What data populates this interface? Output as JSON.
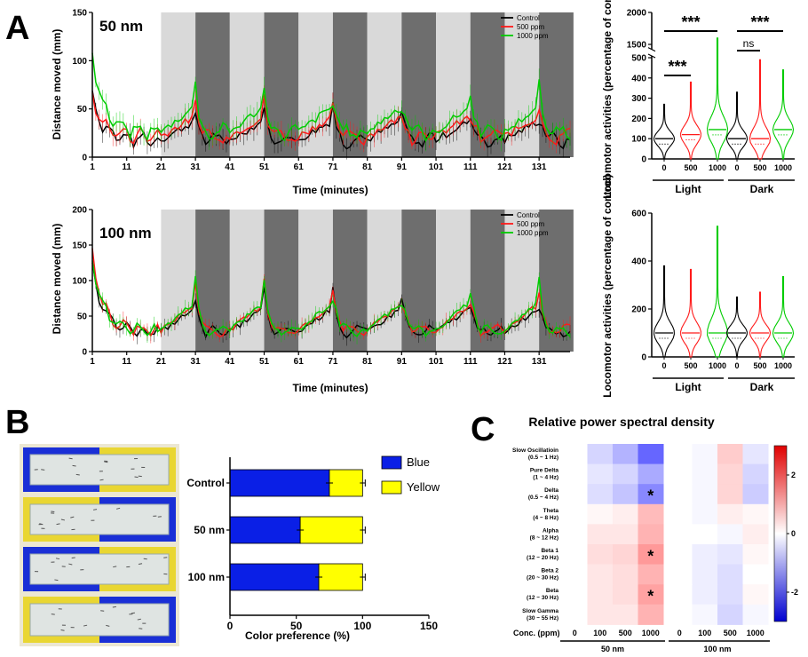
{
  "panels": {
    "A": "A",
    "B": "B",
    "C": "C"
  },
  "colors": {
    "control": "#000000",
    "p500": "#ff1a1a",
    "p1000": "#00cc00",
    "light_band": "#d9d9d9",
    "dark_band": "#6e6e6e",
    "blue": "#0a1fe6",
    "yellow": "#ffff00"
  },
  "chart_data": [
    {
      "id": "a_50nm_timecourse",
      "type": "line",
      "title": "50 nm",
      "xlabel": "Time (minutes)",
      "ylabel": "Distance moved (mm)",
      "ylim": [
        0,
        150
      ],
      "yticks": [
        "0",
        "50",
        "100",
        "150"
      ],
      "xticks": [
        "1",
        "11",
        "21",
        "31",
        "41",
        "51",
        "61",
        "71",
        "81",
        "91",
        "101",
        "111",
        "121",
        "131"
      ],
      "legend": [
        "Control",
        "500 ppm",
        "1000 ppm"
      ],
      "light_dark_periods": [
        {
          "start": 21,
          "end": 30,
          "type": "light"
        },
        {
          "start": 31,
          "end": 40,
          "type": "dark"
        },
        {
          "start": 41,
          "end": 50,
          "type": "light"
        },
        {
          "start": 51,
          "end": 60,
          "type": "dark"
        },
        {
          "start": 61,
          "end": 70,
          "type": "light"
        },
        {
          "start": 71,
          "end": 80,
          "type": "dark"
        },
        {
          "start": 81,
          "end": 90,
          "type": "light"
        },
        {
          "start": 91,
          "end": 100,
          "type": "dark"
        },
        {
          "start": 101,
          "end": 110,
          "type": "light"
        },
        {
          "start": 111,
          "end": 120,
          "type": "dark"
        },
        {
          "start": 121,
          "end": 130,
          "type": "light"
        },
        {
          "start": 131,
          "end": 140,
          "type": "dark"
        }
      ],
      "series": [
        {
          "name": "Control",
          "baseline": 18,
          "peak": 58,
          "early": 45
        },
        {
          "name": "500 ppm",
          "baseline": 22,
          "peak": 62,
          "early": 40
        },
        {
          "name": "1000 ppm",
          "baseline": 26,
          "peak": 80,
          "early": 85
        }
      ]
    },
    {
      "id": "a_100nm_timecourse",
      "type": "line",
      "title": "100 nm",
      "xlabel": "Time (minutes)",
      "ylabel": "Distance moved (mm)",
      "ylim": [
        0,
        200
      ],
      "yticks": [
        "0",
        "50",
        "100",
        "150",
        "200"
      ],
      "xticks": [
        "1",
        "11",
        "21",
        "31",
        "41",
        "51",
        "61",
        "71",
        "81",
        "91",
        "101",
        "111",
        "121",
        "131"
      ],
      "legend": [
        "Control",
        "500 ppm",
        "1000 ppm"
      ],
      "series": [
        {
          "name": "Control",
          "baseline": 28,
          "peak": 95,
          "early": 95
        },
        {
          "name": "500 ppm",
          "baseline": 30,
          "peak": 105,
          "early": 110
        },
        {
          "name": "1000 ppm",
          "baseline": 30,
          "peak": 110,
          "early": 100
        }
      ]
    },
    {
      "id": "a_50nm_violin",
      "type": "violin",
      "ylabel": "Locomotor activities (percentage of control)",
      "yticks_lower": [
        "0",
        "100",
        "200",
        "300",
        "400",
        "500"
      ],
      "yticks_upper": [
        "1500",
        "2000"
      ],
      "categories": [
        "0",
        "500",
        "1000",
        "0",
        "500",
        "1000"
      ],
      "groups": [
        "Light",
        "Dark"
      ],
      "medians": [
        100,
        120,
        145,
        100,
        100,
        145
      ],
      "maxima": [
        270,
        380,
        1600,
        330,
        490,
        440
      ],
      "significance": [
        {
          "pair": "0 vs 500 (Light)",
          "label": "***"
        },
        {
          "pair": "0 vs 1000 (Light)",
          "label": "***"
        },
        {
          "pair": "0 vs 500 (Dark)",
          "label": "ns"
        },
        {
          "pair": "0 vs 1000 (Dark)",
          "label": "***"
        }
      ]
    },
    {
      "id": "a_100nm_violin",
      "type": "violin",
      "ylabel": "Locomotor activities (percentage of control)",
      "yticks": [
        "0",
        "200",
        "400",
        "600"
      ],
      "categories": [
        "0",
        "500",
        "1000",
        "0",
        "500",
        "1000"
      ],
      "groups": [
        "Light",
        "Dark"
      ],
      "medians": [
        100,
        100,
        100,
        100,
        100,
        100
      ],
      "maxima": [
        380,
        365,
        545,
        250,
        270,
        335
      ]
    },
    {
      "id": "b_color_preference",
      "type": "bar",
      "orientation": "horizontal-stacked",
      "xlabel": "Color preference (%)",
      "xlim": [
        0,
        150
      ],
      "xticks": [
        "0",
        "50",
        "100",
        "150"
      ],
      "categories": [
        "Control",
        "50 nm",
        "100 nm"
      ],
      "series": [
        {
          "name": "Blue",
          "values": [
            75,
            53,
            67
          ]
        },
        {
          "name": "Yellow",
          "values": [
            25,
            47,
            33
          ]
        }
      ]
    },
    {
      "id": "c_relative_psd",
      "type": "heatmap",
      "title": "Relative power spectral density",
      "xlabel": "Conc. (ppm)",
      "columns": [
        "0",
        "100",
        "500",
        "1000",
        "0",
        "100",
        "500",
        "1000"
      ],
      "groups": [
        "50 nm",
        "100 nm"
      ],
      "rows": [
        "Slow Oscillatioin (0.5 ~ 1 Hz)",
        "Pure Delta (1 ~ 4 Hz)",
        "Delta (0.5 ~ 4 Hz)",
        "Theta (4 ~ 8 Hz)",
        "Alpha (8 ~ 12 Hz)",
        "Beta 1 (12 ~ 20 Hz)",
        "Beta 2 (20 ~ 30 Hz)",
        "Beta (12 ~ 30 Hz)",
        "Slow Gamma (30 ~ 55 Hz)"
      ],
      "colorbar_ticks": [
        "2",
        "0",
        "-2"
      ],
      "clim": [
        -3,
        3
      ],
      "values": [
        [
          0,
          -0.5,
          -0.9,
          -1.8,
          0,
          -0.1,
          0.6,
          -0.3
        ],
        [
          0,
          -0.3,
          -0.5,
          -1.0,
          0,
          -0.1,
          0.5,
          -0.5
        ],
        [
          0,
          -0.4,
          -0.7,
          -1.4,
          0,
          -0.1,
          0.5,
          -0.6
        ],
        [
          0,
          0.1,
          0.2,
          0.8,
          0,
          -0.1,
          0.2,
          0.1
        ],
        [
          0,
          0.3,
          0.3,
          0.9,
          0,
          0.0,
          -0.1,
          0.2
        ],
        [
          0,
          0.4,
          0.5,
          1.2,
          0,
          -0.2,
          -0.3,
          0.1
        ],
        [
          0,
          0.3,
          0.4,
          0.9,
          0,
          -0.2,
          -0.4,
          0.0
        ],
        [
          0,
          0.3,
          0.4,
          1.1,
          0,
          -0.2,
          -0.4,
          0.1
        ],
        [
          0,
          0.3,
          0.3,
          0.9,
          0,
          -0.1,
          -0.5,
          -0.1
        ]
      ],
      "significance": [
        {
          "row": "Delta (0.5 ~ 4 Hz)",
          "column": "1000",
          "group": "50 nm",
          "label": "*"
        },
        {
          "row": "Beta 1 (12 ~ 20 Hz)",
          "column": "1000",
          "group": "50 nm",
          "label": "*"
        },
        {
          "row": "Beta (12 ~ 30 Hz)",
          "column": "1000",
          "group": "50 nm",
          "label": "*"
        }
      ]
    }
  ]
}
